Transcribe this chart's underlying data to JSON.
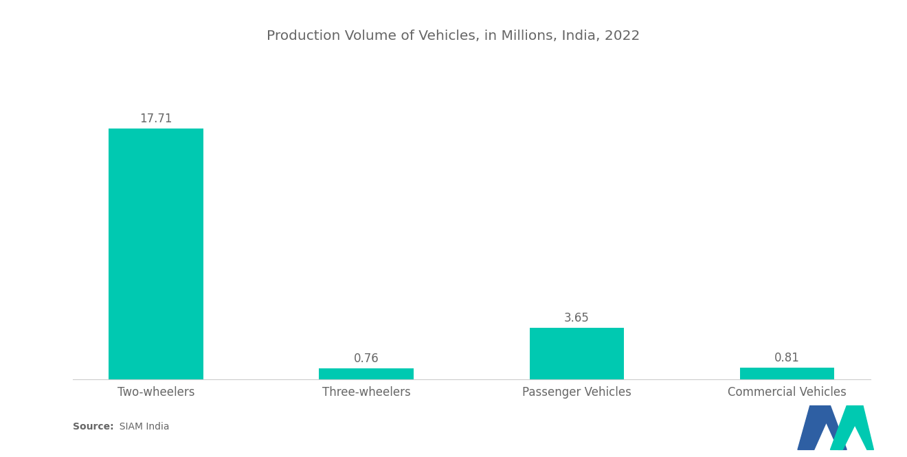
{
  "title": "Production Volume of Vehicles, in Millions, India, 2022",
  "categories": [
    "Two-wheelers",
    "Three-wheelers",
    "Passenger Vehicles",
    "Commercial Vehicles"
  ],
  "values": [
    17.71,
    0.76,
    3.65,
    0.81
  ],
  "bar_color": "#00C9B1",
  "background_color": "#ffffff",
  "title_fontsize": 14.5,
  "label_fontsize": 12,
  "value_fontsize": 12,
  "source_bold": "Source:",
  "source_normal": "  SIAM India",
  "ylim": [
    0,
    20
  ],
  "bar_width": 0.45,
  "logo_dark_blue": "#2E5FA3",
  "logo_teal": "#00C9B1",
  "text_color": "#666666"
}
